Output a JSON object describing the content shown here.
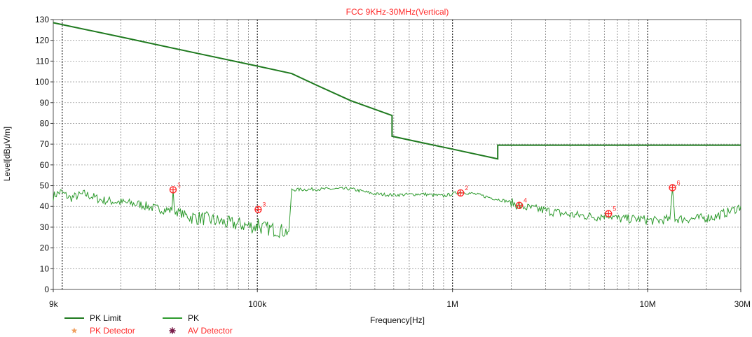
{
  "chart_data": {
    "type": "line",
    "title": "FCC 9KHz-30MHz(Vertical)",
    "xlabel": "Frequency[Hz]",
    "ylabel": "Level[dBμV/m]",
    "x_scale": "log",
    "xlim": [
      9000,
      30000000
    ],
    "ylim": [
      0,
      130
    ],
    "x_ticks": [
      {
        "value": 9000,
        "label": "9k"
      },
      {
        "value": 100000,
        "label": "100k"
      },
      {
        "value": 1000000,
        "label": "1M"
      },
      {
        "value": 10000000,
        "label": "10M"
      },
      {
        "value": 30000000,
        "label": "30M"
      }
    ],
    "y_ticks": [
      0,
      10,
      20,
      30,
      40,
      50,
      60,
      70,
      80,
      90,
      100,
      110,
      120,
      130
    ],
    "grid": true,
    "legend_position": "bottom-left",
    "series": [
      {
        "name": "PK Limit",
        "color": "#1f7a1f",
        "points": [
          [
            9000,
            128.5
          ],
          [
            20000,
            121.6
          ],
          [
            50000,
            113.6
          ],
          [
            100000,
            107.6
          ],
          [
            150000,
            104.0
          ],
          [
            200000,
            98.5
          ],
          [
            300000,
            91.0
          ],
          [
            490000,
            83.8
          ],
          [
            490000,
            73.8
          ],
          [
            700000,
            70.7
          ],
          [
            1000000,
            67.6
          ],
          [
            1705000,
            62.9
          ],
          [
            1705000,
            69.5
          ],
          [
            30000000,
            69.5
          ]
        ]
      },
      {
        "name": "PK",
        "color": "#2e9b2e",
        "points": [
          [
            9000,
            45
          ],
          [
            9800,
            47
          ],
          [
            11000,
            44
          ],
          [
            13000,
            46
          ],
          [
            16000,
            43
          ],
          [
            20000,
            42
          ],
          [
            25000,
            41
          ],
          [
            30000,
            39
          ],
          [
            36500,
            38
          ],
          [
            37000,
            48
          ],
          [
            37500,
            38
          ],
          [
            45000,
            35
          ],
          [
            55000,
            34
          ],
          [
            70000,
            32
          ],
          [
            85000,
            31
          ],
          [
            100000,
            30
          ],
          [
            101000,
            36
          ],
          [
            102000,
            30
          ],
          [
            120000,
            29
          ],
          [
            140000,
            28
          ],
          [
            145000,
            28
          ],
          [
            150000,
            48
          ],
          [
            200000,
            48.3
          ],
          [
            300000,
            48.5
          ],
          [
            400000,
            46
          ],
          [
            500000,
            45.5
          ],
          [
            700000,
            46
          ],
          [
            900000,
            45
          ],
          [
            1100000,
            47
          ],
          [
            1300000,
            46
          ],
          [
            1600000,
            44
          ],
          [
            2000000,
            42
          ],
          [
            2200000,
            40
          ],
          [
            3000000,
            38
          ],
          [
            4000000,
            36
          ],
          [
            5500000,
            35
          ],
          [
            6300000,
            36
          ],
          [
            7000000,
            34
          ],
          [
            9000000,
            34
          ],
          [
            11000000,
            33
          ],
          [
            13000000,
            34
          ],
          [
            13400000,
            49
          ],
          [
            13800000,
            34
          ],
          [
            17000000,
            34
          ],
          [
            22000000,
            35
          ],
          [
            27000000,
            38
          ],
          [
            30000000,
            40
          ]
        ]
      }
    ],
    "markers": [
      {
        "label": "1",
        "x": 37000,
        "y": 48.0
      },
      {
        "label": "2",
        "x": 1100000,
        "y": 46.5
      },
      {
        "label": "3",
        "x": 101000,
        "y": 38.5
      },
      {
        "label": "4",
        "x": 2200000,
        "y": 40.5
      },
      {
        "label": "5",
        "x": 6300000,
        "y": 36.5
      },
      {
        "label": "6",
        "x": 13400000,
        "y": 49.0
      }
    ],
    "legend": [
      {
        "label": "PK Limit",
        "kind": "line",
        "color": "#1f7a1f",
        "text_color": "#111111"
      },
      {
        "label": "PK",
        "kind": "line",
        "color": "#2e9b2e",
        "text_color": "#111111"
      },
      {
        "label": "PK Detector",
        "kind": "star",
        "color": "#f0a060",
        "text_color": "#ff2a2a"
      },
      {
        "label": "AV Detector",
        "kind": "burst",
        "color": "#7a1f4a",
        "text_color": "#ff2a2a"
      }
    ]
  }
}
